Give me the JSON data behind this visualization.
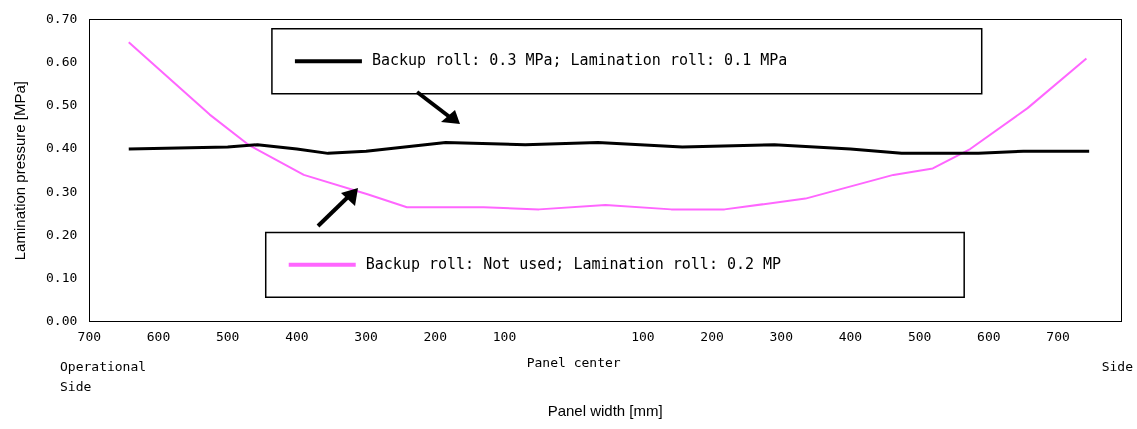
{
  "chart_data": {
    "type": "line",
    "xlabel": "Panel width [mm]",
    "ylabel": "Lamination pressure [MPa]",
    "xlim": [
      -700,
      791
    ],
    "ylim": [
      0,
      0.7
    ],
    "xticks": [
      {
        "value": -700,
        "label": "700"
      },
      {
        "value": -600,
        "label": "600"
      },
      {
        "value": -500,
        "label": "500"
      },
      {
        "value": -400,
        "label": "400"
      },
      {
        "value": -300,
        "label": "300"
      },
      {
        "value": -200,
        "label": "200"
      },
      {
        "value": -100,
        "label": "100"
      },
      {
        "value": 100,
        "label": "100"
      },
      {
        "value": 200,
        "label": "200"
      },
      {
        "value": 300,
        "label": "300"
      },
      {
        "value": 400,
        "label": "400"
      },
      {
        "value": 500,
        "label": "500"
      },
      {
        "value": 600,
        "label": "600"
      },
      {
        "value": 700,
        "label": "700"
      }
    ],
    "yticks": [
      {
        "value": 0,
        "label": "0.00"
      },
      {
        "value": 0.1,
        "label": "0.10"
      },
      {
        "value": 0.2,
        "label": "0.20"
      },
      {
        "value": 0.3,
        "label": "0.30"
      },
      {
        "value": 0.4,
        "label": "0.40"
      },
      {
        "value": 0.5,
        "label": "0.50"
      },
      {
        "value": 0.6,
        "label": "0.60"
      },
      {
        "value": 0.7,
        "label": "0.70"
      }
    ],
    "grid": false,
    "legend": "top",
    "marker": "none",
    "line_style": "solid",
    "annotations": [
      "Operational Side",
      "Panel center",
      "Side"
    ],
    "series": [
      {
        "name": "Backup roll: 0.3 MPa; Lamination roll: 0.1 MPa",
        "color": "#000000",
        "x": [
          -643,
          -500,
          -457,
          -400,
          -355,
          -300,
          -185,
          -70,
          35,
          157,
          290,
          400,
          474,
          585,
          650,
          745
        ],
        "values": [
          0.4,
          0.405,
          0.41,
          0.4,
          0.39,
          0.395,
          0.415,
          0.41,
          0.415,
          0.405,
          0.41,
          0.4,
          0.39,
          0.39,
          0.395,
          0.395
        ]
      },
      {
        "name": "Backup roll: Not used; Lamination roll: 0.2 MP",
        "color": "#ff66ff",
        "x": [
          -643,
          -526,
          -470,
          -390,
          -298,
          -241,
          -130,
          -50,
          46,
          141,
          218,
          335,
          462,
          519,
          573,
          656,
          741
        ],
        "values": [
          0.648,
          0.48,
          0.41,
          0.34,
          0.295,
          0.265,
          0.265,
          0.26,
          0.27,
          0.26,
          0.26,
          0.285,
          0.34,
          0.355,
          0.4,
          0.495,
          0.61
        ]
      }
    ]
  }
}
